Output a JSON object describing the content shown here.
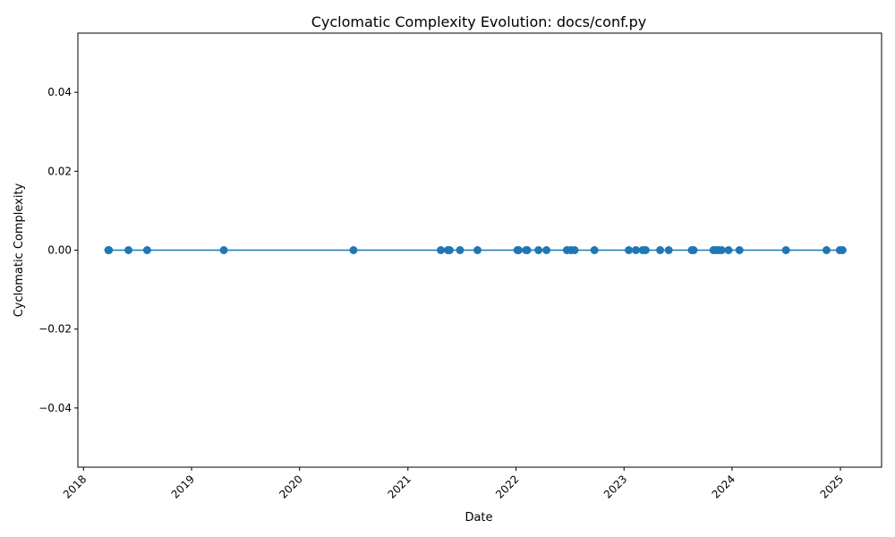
{
  "chart_data": {
    "type": "line",
    "title": "Cyclomatic Complexity Evolution: docs/conf.py",
    "xlabel": "Date",
    "ylabel": "Cyclomatic Complexity",
    "x_axis_type": "date",
    "xlim": [
      "2017-12-13",
      "2025-05-20"
    ],
    "ylim": [
      -0.055,
      0.055
    ],
    "x_tick_labels": [
      "2018",
      "2019",
      "2020",
      "2021",
      "2022",
      "2023",
      "2024",
      "2025"
    ],
    "x_ticks": [
      "2018-01-01",
      "2019-01-01",
      "2020-01-01",
      "2021-01-01",
      "2022-01-01",
      "2023-01-01",
      "2024-01-01",
      "2025-01-01"
    ],
    "y_ticks": [
      -0.04,
      -0.02,
      0.0,
      0.02,
      0.04
    ],
    "y_tick_labels": [
      "−0.04",
      "−0.02",
      "0.00",
      "0.02",
      "0.04"
    ],
    "grid": false,
    "legend": "none",
    "color": "#1f77b4",
    "marker": "circle",
    "series": [
      {
        "x": [
          "2018-03-26",
          "2018-03-28",
          "2018-06-02",
          "2018-08-04",
          "2019-04-20",
          "2020-07-01",
          "2021-04-22",
          "2021-05-16",
          "2021-05-22",
          "2021-06-26",
          "2021-08-24",
          "2022-01-06",
          "2022-01-10",
          "2022-02-04",
          "2022-02-08",
          "2022-03-18",
          "2022-04-14",
          "2022-06-22",
          "2022-07-06",
          "2022-07-18",
          "2022-09-23",
          "2023-01-17",
          "2023-02-10",
          "2023-03-05",
          "2023-03-15",
          "2023-05-03",
          "2023-06-01",
          "2023-08-18",
          "2023-08-24",
          "2023-10-30",
          "2023-11-08",
          "2023-11-16",
          "2023-11-27",
          "2023-12-20",
          "2024-01-26",
          "2024-07-01",
          "2024-11-15",
          "2024-12-30",
          "2025-01-08"
        ],
        "y": [
          0,
          0,
          0,
          0,
          0,
          0,
          0,
          0,
          0,
          0,
          0,
          0,
          0,
          0,
          0,
          0,
          0,
          0,
          0,
          0,
          0,
          0,
          0,
          0,
          0,
          0,
          0,
          0,
          0,
          0,
          0,
          0,
          0,
          0,
          0,
          0,
          0,
          0,
          0
        ]
      }
    ]
  }
}
